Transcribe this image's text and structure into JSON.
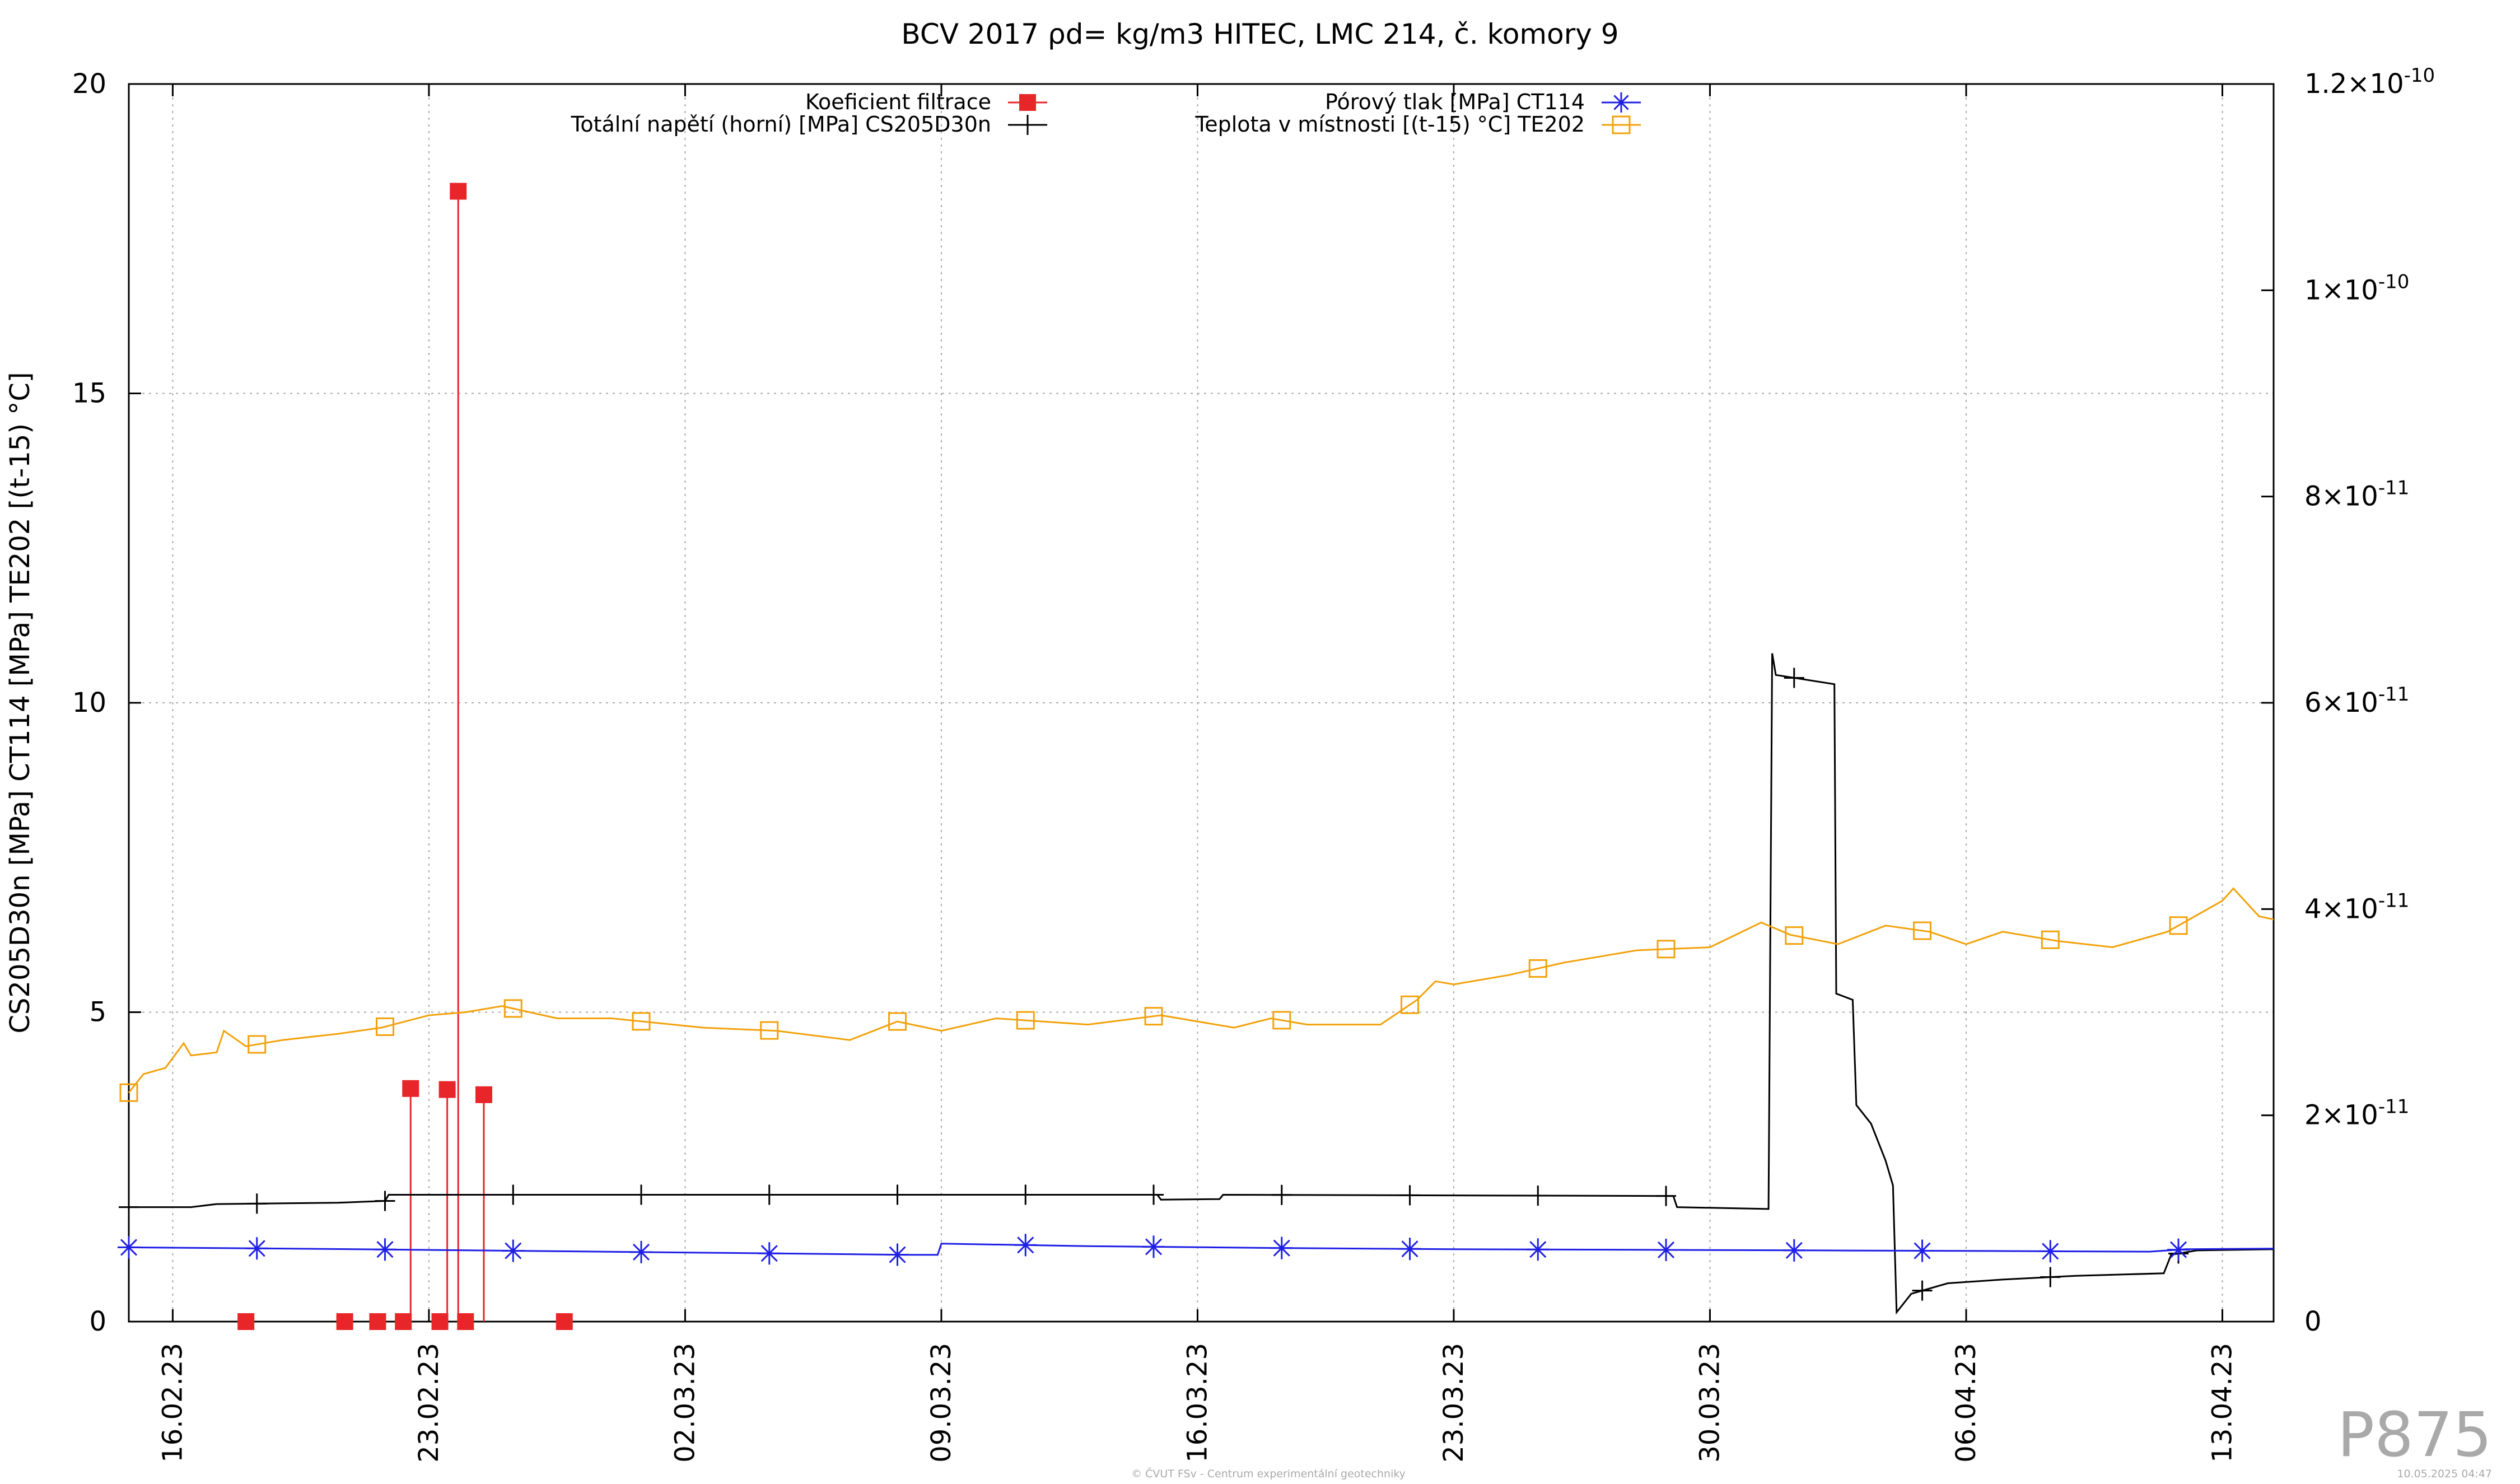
{
  "chart_data": {
    "type": "line",
    "title": "BCV 2017 ρd= kg/m3 HITEC, LMC 214, č. komory 9",
    "ylabel": "CS205D30n [MPa] CT114 [MPa] TE202 [(t-15) °C]",
    "ylim": [
      0,
      20
    ],
    "yticks": [
      "0",
      "5",
      "10",
      "15",
      "20"
    ],
    "y2lim": [
      0,
      1.2e-10
    ],
    "y2ticks": [
      {
        "base": "0",
        "exp": ""
      },
      {
        "base": "2×10",
        "exp": "-11"
      },
      {
        "base": "4×10",
        "exp": "-11"
      },
      {
        "base": "6×10",
        "exp": "-11"
      },
      {
        "base": "8×10",
        "exp": "-11"
      },
      {
        "base": "1×10",
        "exp": "-10"
      },
      {
        "base": "1.2×10",
        "exp": "-10"
      }
    ],
    "xlim_days": [
      -1.2,
      57.4
    ],
    "xticks": [
      {
        "label": "16.02.23",
        "d": 0
      },
      {
        "label": "23.02.23",
        "d": 7
      },
      {
        "label": "02.03.23",
        "d": 14
      },
      {
        "label": "09.03.23",
        "d": 21
      },
      {
        "label": "16.03.23",
        "d": 28
      },
      {
        "label": "23.03.23",
        "d": 35
      },
      {
        "label": "30.03.23",
        "d": 42
      },
      {
        "label": "06.04.23",
        "d": 49
      },
      {
        "label": "13.04.23",
        "d": 56
      }
    ],
    "grid": true,
    "legend_position": "top",
    "series": [
      {
        "name": "Koeficient filtrace",
        "axis": "right",
        "color": "#e8262a",
        "style": "impulse-squares",
        "points": [
          [
            2.0,
            0
          ],
          [
            4.7,
            0
          ],
          [
            5.6,
            0
          ],
          [
            6.3,
            0
          ],
          [
            7.3,
            0
          ],
          [
            8.0,
            0
          ],
          [
            10.7,
            0
          ],
          [
            6.5,
            2.26e-11
          ],
          [
            7.5,
            2.25e-11
          ],
          [
            8.5,
            2.2e-11
          ],
          [
            7.8,
            1.096e-10
          ]
        ]
      },
      {
        "name": "Totální napětí (horní) [MPa] CS205D30n",
        "axis": "left",
        "color": "#000000",
        "style": "line-plus",
        "points": [
          [
            -1.2,
            1.85
          ],
          [
            0.5,
            1.85
          ],
          [
            1.2,
            1.9
          ],
          [
            4.5,
            1.92
          ],
          [
            5.8,
            1.95
          ],
          [
            5.9,
            2.05
          ],
          [
            26.9,
            2.05
          ],
          [
            27.0,
            1.97
          ],
          [
            28.6,
            1.98
          ],
          [
            28.7,
            2.05
          ],
          [
            41.0,
            2.03
          ],
          [
            41.1,
            1.85
          ],
          [
            43.6,
            1.82
          ],
          [
            43.7,
            10.8
          ],
          [
            43.8,
            10.45
          ],
          [
            45.4,
            10.3
          ],
          [
            45.45,
            5.3
          ],
          [
            45.9,
            5.2
          ],
          [
            46.0,
            3.5
          ],
          [
            46.4,
            3.2
          ],
          [
            46.8,
            2.6
          ],
          [
            47.0,
            2.2
          ],
          [
            47.1,
            0.15
          ],
          [
            47.5,
            0.45
          ],
          [
            48.5,
            0.62
          ],
          [
            50.0,
            0.68
          ],
          [
            52.0,
            0.74
          ],
          [
            54.4,
            0.78
          ],
          [
            54.6,
            1.08
          ],
          [
            55.3,
            1.15
          ],
          [
            57.4,
            1.17
          ]
        ]
      },
      {
        "name": "Pórový tlak [MPa] CT114",
        "axis": "left",
        "color": "#1f1fe6",
        "style": "line-star",
        "points": [
          [
            -1.2,
            1.2
          ],
          [
            5.0,
            1.17
          ],
          [
            10.0,
            1.14
          ],
          [
            15.0,
            1.11
          ],
          [
            20.0,
            1.08
          ],
          [
            20.9,
            1.08
          ],
          [
            21.0,
            1.26
          ],
          [
            25.0,
            1.22
          ],
          [
            30.0,
            1.19
          ],
          [
            35.0,
            1.17
          ],
          [
            40.0,
            1.16
          ],
          [
            45.0,
            1.15
          ],
          [
            50.0,
            1.14
          ],
          [
            54.0,
            1.13
          ],
          [
            55.0,
            1.17
          ],
          [
            57.4,
            1.18
          ]
        ]
      },
      {
        "name": "Teplota v místnosti [(t-15) °C] TE202",
        "axis": "left",
        "color": "#f2a20c",
        "style": "line-square",
        "points": [
          [
            -1.2,
            3.7
          ],
          [
            -0.8,
            4.0
          ],
          [
            -0.2,
            4.1
          ],
          [
            0.3,
            4.5
          ],
          [
            0.5,
            4.3
          ],
          [
            1.2,
            4.35
          ],
          [
            1.4,
            4.7
          ],
          [
            2.0,
            4.45
          ],
          [
            3.0,
            4.55
          ],
          [
            4.5,
            4.65
          ],
          [
            5.7,
            4.75
          ],
          [
            7.0,
            4.95
          ],
          [
            8.0,
            5.0
          ],
          [
            9.0,
            5.1
          ],
          [
            10.5,
            4.9
          ],
          [
            12.0,
            4.9
          ],
          [
            14.5,
            4.75
          ],
          [
            16.5,
            4.7
          ],
          [
            18.5,
            4.55
          ],
          [
            19.8,
            4.85
          ],
          [
            21.0,
            4.7
          ],
          [
            22.5,
            4.9
          ],
          [
            25.0,
            4.8
          ],
          [
            27.0,
            4.95
          ],
          [
            29.0,
            4.75
          ],
          [
            30.0,
            4.9
          ],
          [
            31.0,
            4.8
          ],
          [
            33.0,
            4.8
          ],
          [
            34.0,
            5.2
          ],
          [
            34.5,
            5.5
          ],
          [
            35.0,
            5.45
          ],
          [
            36.5,
            5.6
          ],
          [
            38.0,
            5.8
          ],
          [
            40.0,
            6.0
          ],
          [
            42.0,
            6.05
          ],
          [
            43.4,
            6.45
          ],
          [
            44.2,
            6.25
          ],
          [
            45.5,
            6.1
          ],
          [
            46.8,
            6.4
          ],
          [
            48.0,
            6.3
          ],
          [
            49.0,
            6.1
          ],
          [
            50.0,
            6.3
          ],
          [
            51.5,
            6.15
          ],
          [
            53.0,
            6.05
          ],
          [
            54.5,
            6.3
          ],
          [
            56.0,
            6.8
          ],
          [
            56.3,
            7.0
          ],
          [
            57.0,
            6.55
          ],
          [
            57.4,
            6.5
          ]
        ]
      }
    ]
  },
  "watermark": "P875",
  "footer": {
    "credit": "© ČVUT FSv - Centrum experimentální geotechniky",
    "timestamp": "10.05.2025 04:47"
  }
}
